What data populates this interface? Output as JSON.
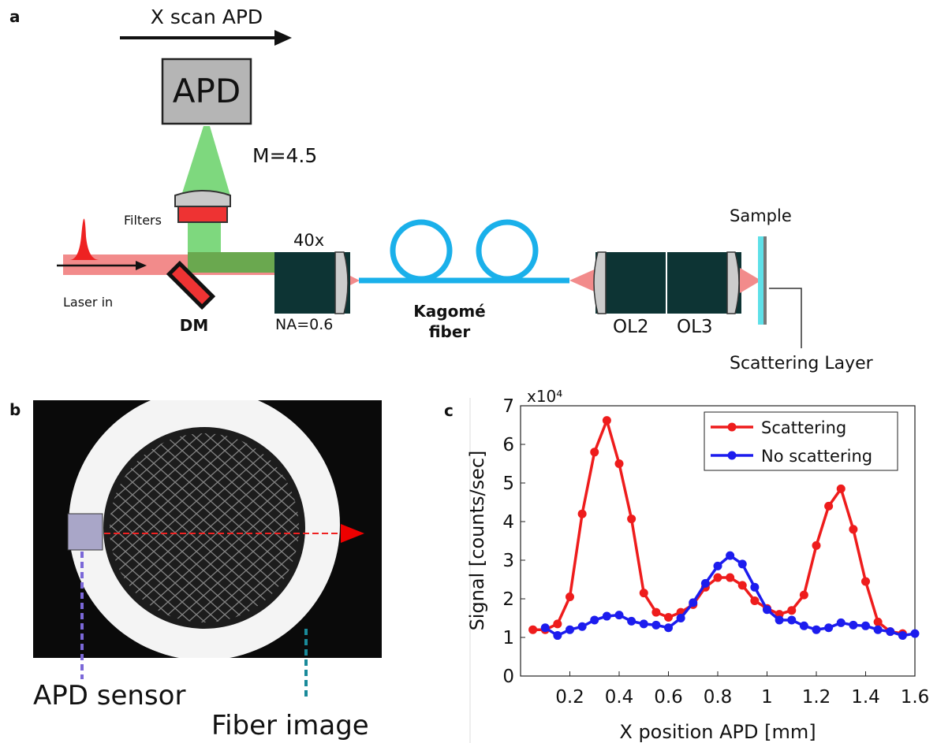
{
  "panel_labels": [
    "a",
    "b",
    "c"
  ],
  "setup": {
    "scan_label": "X scan APD",
    "detector": "APD",
    "magnification": "M=4.5",
    "filters": "Filters",
    "laser": "Laser in",
    "mirror": "DM",
    "objective": "40x",
    "aperture": "NA=0.6",
    "fiber": [
      "Kagomé",
      "fiber"
    ],
    "lenses": [
      "OL2",
      "OL3"
    ],
    "sample": "Sample",
    "layer": "Scattering Layer"
  },
  "image": {
    "sensor_label": "APD sensor",
    "fiber_label": "Fiber image"
  },
  "chart_data": {
    "type": "line",
    "y_multiplier": "x10⁴",
    "xlabel": "X position APD [mm]",
    "ylabel": "Signal [counts/sec]",
    "x": [
      0.05,
      0.1,
      0.15,
      0.2,
      0.25,
      0.3,
      0.35,
      0.4,
      0.45,
      0.5,
      0.55,
      0.6,
      0.65,
      0.7,
      0.75,
      0.8,
      0.85,
      0.9,
      0.95,
      1.0,
      1.05,
      1.1,
      1.15,
      1.2,
      1.25,
      1.3,
      1.35,
      1.4,
      1.45,
      1.5,
      1.55,
      1.6
    ],
    "series": [
      {
        "name": "Scattering",
        "color": "#ee1c1c",
        "values": [
          1.2,
          1.2,
          1.35,
          2.05,
          4.2,
          5.8,
          6.62,
          5.5,
          4.07,
          2.15,
          1.65,
          1.52,
          1.65,
          1.85,
          2.3,
          2.55,
          2.55,
          2.35,
          1.95,
          1.75,
          1.6,
          1.7,
          2.1,
          3.38,
          4.4,
          4.85,
          3.8,
          2.45,
          1.4,
          1.15,
          1.1,
          null
        ]
      },
      {
        "name": "No scattering",
        "color": "#1c1cee",
        "values": [
          null,
          1.25,
          1.05,
          1.2,
          1.28,
          1.45,
          1.55,
          1.58,
          1.42,
          1.35,
          1.32,
          1.25,
          1.5,
          1.9,
          2.4,
          2.85,
          3.12,
          2.9,
          2.3,
          1.72,
          1.45,
          1.45,
          1.3,
          1.2,
          1.25,
          1.38,
          1.32,
          1.3,
          1.2,
          1.15,
          1.05,
          1.1
        ]
      }
    ],
    "xlim": [
      0,
      1.6
    ],
    "xticks": [
      0.2,
      0.4,
      0.6,
      0.8,
      1,
      1.2,
      1.4,
      1.6
    ],
    "ylim": [
      0,
      7
    ],
    "yticks": [
      0,
      1,
      2,
      3,
      4,
      5,
      6,
      7
    ],
    "legend": "upper right"
  }
}
